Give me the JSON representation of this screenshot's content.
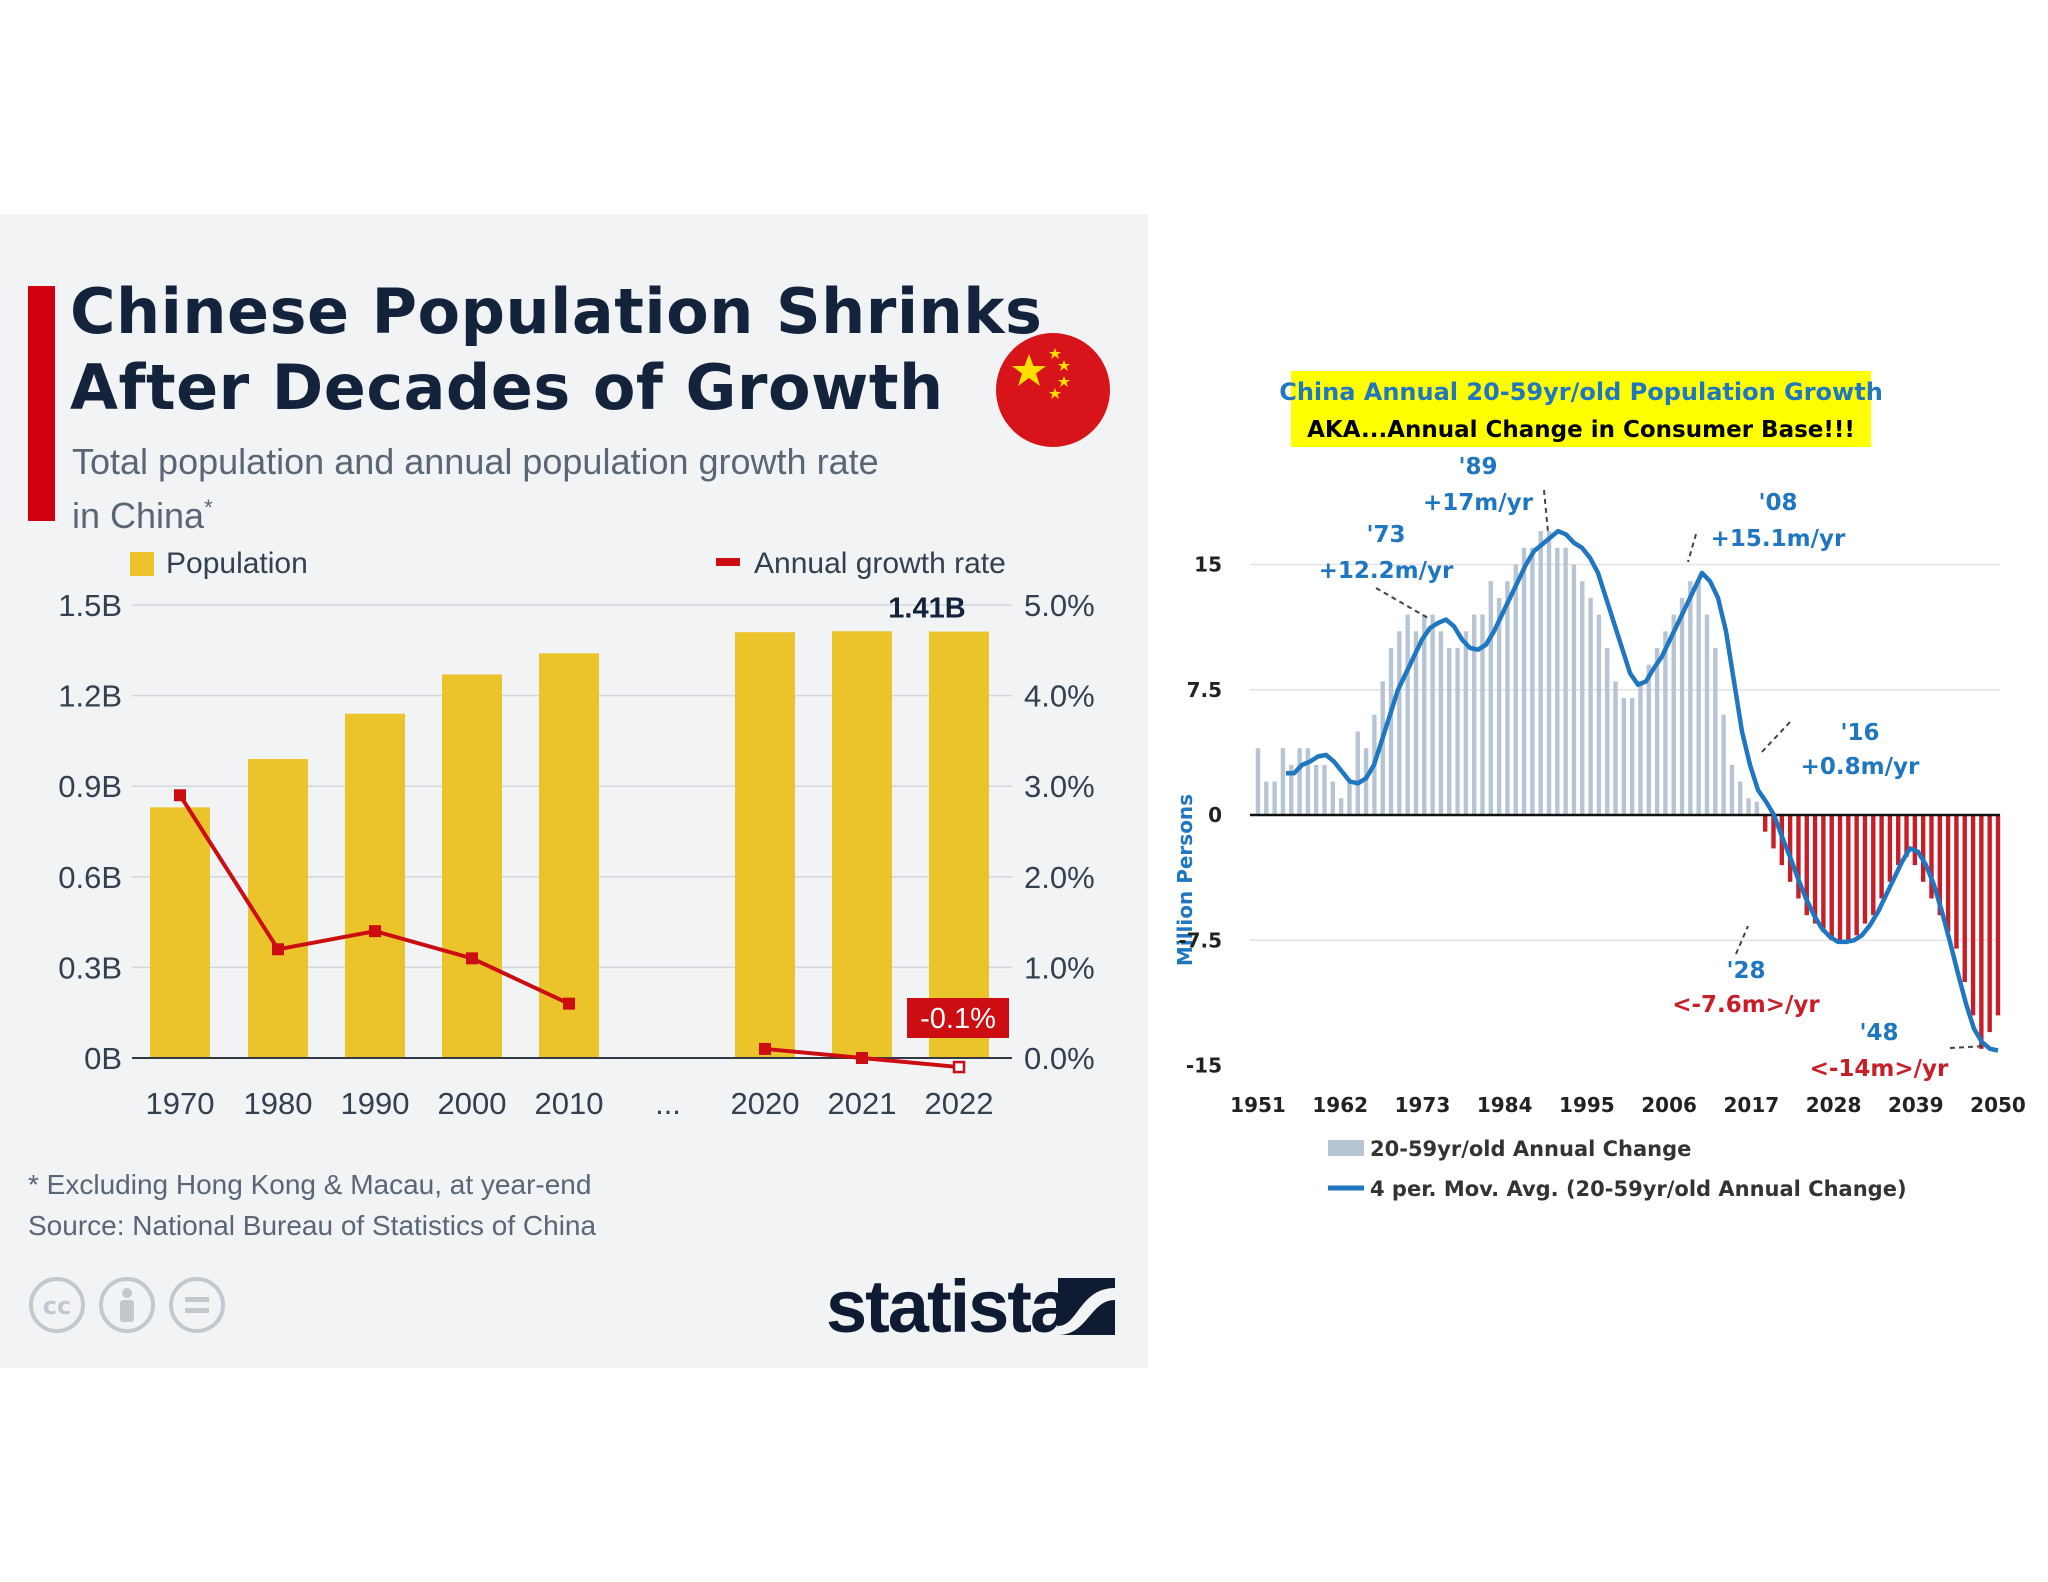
{
  "left": {
    "title_line1": "Chinese Population Shrinks",
    "title_line2": "After Decades of Growth",
    "subtitle_line1": "Total population and annual population growth rate",
    "subtitle_line2": "in China",
    "subtitle_mark": "*",
    "legend_population": "Population",
    "legend_growth": "Annual growth rate",
    "note": "* Excluding Hong Kong & Macau, at year-end",
    "source": "Source: National Bureau of Statistics of China",
    "brand": "statista",
    "colors": {
      "bar": "#ebc42c",
      "line": "#cc0d12",
      "title": "#14233c",
      "accent": "#d1000e"
    }
  },
  "right": {
    "title_line1": "China Annual 20-59yr/old Population Growth",
    "title_line2": "AKA...Annual  Change in Consumer Base!!!",
    "ylabel": "Million Persons",
    "legend_bars": "20-59yr/old Annual Change",
    "legend_line": "4 per. Mov. Avg. (20-59yr/old Annual Change)",
    "colors": {
      "bar_positive": "#b7c4d4",
      "bar_negative": "#c81e28",
      "line": "#1f76c1",
      "highlight": "#ffff00"
    }
  },
  "chart_data": [
    {
      "type": "bar",
      "title": "Chinese Population Shrinks After Decades of Growth",
      "categories": [
        "1970",
        "1980",
        "1990",
        "2000",
        "2010",
        "2020",
        "2021",
        "2022"
      ],
      "gap_label": "...",
      "gap_after_index": 4,
      "series": [
        {
          "name": "Population",
          "axis": "left",
          "values": [
            0.83,
            0.99,
            1.14,
            1.27,
            1.34,
            1.41,
            1.413,
            1.412
          ]
        },
        {
          "name": "Annual growth rate",
          "axis": "right",
          "type": "line",
          "values": [
            2.9,
            1.2,
            1.4,
            1.1,
            0.6,
            0.1,
            0.0,
            -0.1
          ]
        }
      ],
      "left_axis": {
        "ticks": [
          "0B",
          "0.3B",
          "0.6B",
          "0.9B",
          "1.2B",
          "1.5B"
        ],
        "ylim": [
          0,
          1.5
        ]
      },
      "right_axis": {
        "ticks": [
          "0.0%",
          "1.0%",
          "2.0%",
          "3.0%",
          "4.0%",
          "5.0%"
        ],
        "ylim": [
          0,
          5
        ]
      },
      "annotations": [
        {
          "text": "1.41B",
          "category": "2022"
        },
        {
          "text": "-0.1%",
          "category": "2022"
        }
      ]
    },
    {
      "type": "bar",
      "title": "China Annual 20-59yr/old Population Growth",
      "xlabel": "",
      "ylabel": "Million Persons",
      "x_start": 1951,
      "x_end": 2050,
      "ylim": [
        -15,
        15
      ],
      "yticks": [
        "15",
        "7.5",
        "0",
        "-7.5",
        "-15"
      ],
      "xticks": [
        "1951",
        "1962",
        "1973",
        "1984",
        "1995",
        "2006",
        "2017",
        "2028",
        "2039",
        "2050"
      ],
      "bar_values": [
        4,
        2,
        2,
        4,
        3,
        4,
        4,
        3,
        3,
        2,
        1,
        2,
        5,
        4,
        6,
        8,
        10,
        11,
        12,
        11,
        12,
        12,
        11,
        10,
        10,
        11,
        12,
        12,
        14,
        13,
        14,
        15,
        16,
        16,
        17,
        17,
        16,
        16,
        15,
        14,
        13,
        12,
        10,
        8,
        7,
        7,
        8,
        9,
        10,
        11,
        12,
        13,
        14,
        14,
        12,
        10,
        6,
        3,
        2,
        1,
        0.8,
        -1,
        -2,
        -3,
        -4,
        -5,
        -6,
        -6.5,
        -7,
        -7.5,
        -7.6,
        -7.5,
        -7.2,
        -6.5,
        -6,
        -5,
        -4,
        -3,
        -2.5,
        -3,
        -4,
        -5,
        -6,
        -7,
        -8,
        -10,
        -12,
        -14,
        -13,
        -12
      ],
      "moving_average": [
        2.5,
        2.5,
        3,
        3.2,
        3.5,
        3.6,
        3.2,
        2.6,
        2,
        1.9,
        2.2,
        3,
        4.5,
        6,
        7.5,
        8.5,
        9.5,
        10.5,
        11.2,
        11.5,
        11.7,
        11.3,
        10.5,
        10,
        9.9,
        10.2,
        11,
        12,
        13,
        14,
        15,
        15.8,
        16.2,
        16.6,
        17,
        16.8,
        16.3,
        16,
        15.4,
        14.5,
        13,
        11.5,
        10,
        8.5,
        7.8,
        8,
        8.8,
        9.5,
        10.5,
        11.5,
        12.5,
        13.5,
        14.5,
        14,
        13,
        11,
        8,
        5,
        3,
        1.5,
        0.8,
        0,
        -1.3,
        -2.5,
        -3.8,
        -5,
        -6,
        -6.8,
        -7.3,
        -7.6,
        -7.6,
        -7.5,
        -7.2,
        -6.6,
        -5.8,
        -4.8,
        -3.8,
        -2.8,
        -2,
        -2.2,
        -3,
        -4.2,
        -5.8,
        -7.6,
        -9.5,
        -11.3,
        -12.8,
        -13.6,
        -14,
        -14.1
      ],
      "annotations": [
        {
          "label": "'73",
          "value": "+12.2m/yr"
        },
        {
          "label": "'89",
          "value": "+17m/yr"
        },
        {
          "label": "'08",
          "value": "+15.1m/yr"
        },
        {
          "label": "'16",
          "value": "+0.8m/yr"
        },
        {
          "label": "'28",
          "value": "<-7.6m>/yr"
        },
        {
          "label": "'48",
          "value": "<-14m>/yr"
        }
      ]
    }
  ]
}
